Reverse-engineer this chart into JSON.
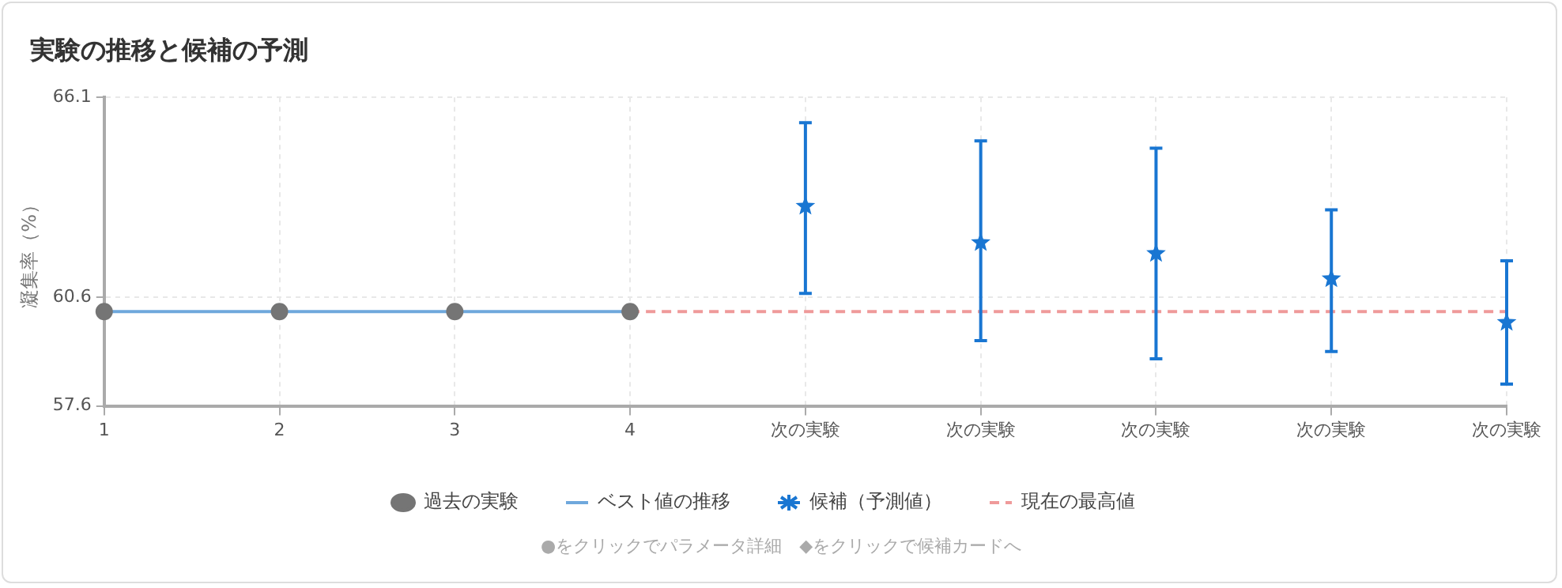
{
  "chart_data": {
    "type": "line",
    "title": "実験の推移と候補の予測",
    "ylabel": "凝集率（%）",
    "categories": [
      "1",
      "2",
      "3",
      "4",
      "次の実験",
      "次の実験",
      "次の実験",
      "次の実験",
      "次の実験"
    ],
    "ylim": [
      57.6,
      66.1
    ],
    "yticks": [
      57.6,
      60.6,
      66.1
    ],
    "grid": true,
    "legend": "bottom",
    "series": [
      {
        "name": "過去の実験",
        "type": "scatter",
        "marker": "circle",
        "color": "#757575",
        "values": [
          60.2,
          60.2,
          60.2,
          60.2,
          null,
          null,
          null,
          null,
          null
        ]
      },
      {
        "name": "ベスト値の推移",
        "marker": "none",
        "line_style": "solid",
        "color": "#6fa8dc",
        "values": [
          60.2,
          60.2,
          60.2,
          60.2,
          null,
          null,
          null,
          null,
          null
        ]
      },
      {
        "name": "候補（予測値）",
        "type": "scatter",
        "marker": "star",
        "color": "#1976d2",
        "values": [
          null,
          null,
          null,
          null,
          63.1,
          62.1,
          61.8,
          61.1,
          59.9
        ],
        "errors": [
          null,
          null,
          null,
          null,
          [
            60.7,
            65.4
          ],
          [
            59.4,
            64.9
          ],
          [
            58.9,
            64.7
          ],
          [
            59.1,
            63.0
          ],
          [
            58.2,
            61.6
          ]
        ]
      },
      {
        "name": "現在の最高値",
        "marker": "none",
        "line_style": "dashed",
        "color": "#ef9a9a",
        "values": [
          null,
          null,
          null,
          60.2,
          60.2,
          60.2,
          60.2,
          60.2,
          60.2
        ]
      }
    ],
    "annotations": [
      "●をクリックでパラメータ詳細　◆をクリックで候補カードへ"
    ]
  }
}
